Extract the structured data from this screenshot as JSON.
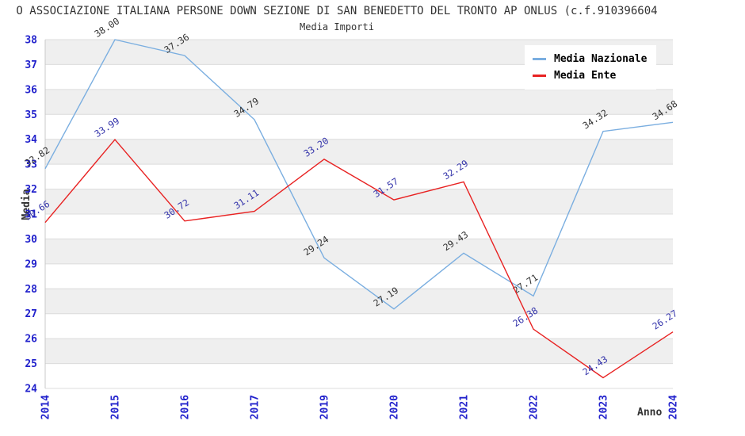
{
  "header": {
    "title": "O ASSOCIAZIONE ITALIANA PERSONE DOWN SEZIONE DI SAN BENEDETTO DEL TRONTO AP ONLUS (c.f.910396604",
    "subtitle": "Media Importi"
  },
  "chart_data": {
    "type": "line",
    "categories": [
      "2014",
      "2015",
      "2016",
      "2017",
      "2019",
      "2020",
      "2021",
      "2022",
      "2023",
      "2024"
    ],
    "series": [
      {
        "name": "Media Nazionale",
        "color": "#7aaee0",
        "label_color": "#333333",
        "values": [
          32.82,
          38.0,
          37.36,
          34.79,
          29.24,
          27.19,
          29.43,
          27.71,
          34.32,
          34.68
        ]
      },
      {
        "name": "Media Ente",
        "color": "#e82222",
        "label_color": "#3333aa",
        "values": [
          30.66,
          33.99,
          30.72,
          31.11,
          33.2,
          31.57,
          32.29,
          26.38,
          24.43,
          26.27
        ]
      }
    ],
    "title": "Media Importi",
    "xlabel": "Anno",
    "ylabel": "Media",
    "ylim": [
      24,
      38
    ],
    "ytick_step": 1,
    "grid": true,
    "band_color": "#efefef",
    "gridline_color": "#dcdcdc",
    "spine_color": "#c8c8c8",
    "tick_label_color": "#2222cc",
    "legend_position": "top-right",
    "value_label_decimals": 2
  }
}
